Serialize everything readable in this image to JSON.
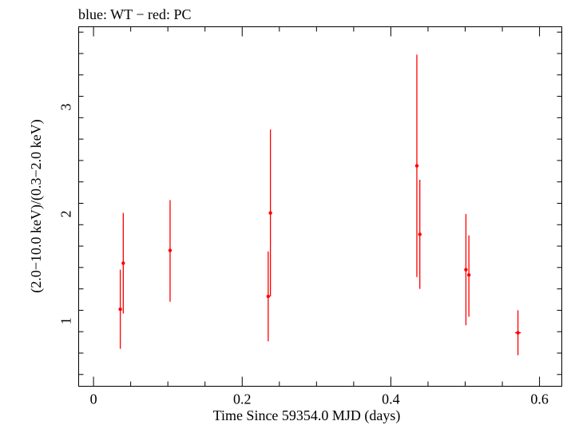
{
  "chart_data": {
    "type": "scatter",
    "title": "blue: WT − red: PC",
    "xlabel": "Time Since 59354.0 MJD (days)",
    "ylabel": "(2.0−10.0 keV)/(0.3−2.0 keV)",
    "xlim": [
      -0.02,
      0.63
    ],
    "ylim": [
      0.39,
      3.75
    ],
    "x_ticks": [
      0,
      0.2,
      0.4,
      0.6
    ],
    "x_tick_labels": [
      "0",
      "0.2",
      "0.4",
      "0.6"
    ],
    "y_ticks": [
      1,
      2,
      3
    ],
    "y_tick_labels": [
      "1",
      "2",
      "3"
    ],
    "grid": false,
    "series": [
      {
        "color": "#ff0000",
        "points": [
          {
            "x": 0.036,
            "y": 1.11,
            "xerr": 0.002,
            "ylo": 0.74,
            "yhi": 1.48
          },
          {
            "x": 0.04,
            "y": 1.54,
            "xerr": 0.002,
            "ylo": 1.07,
            "yhi": 2.01
          },
          {
            "x": 0.103,
            "y": 1.66,
            "xerr": 0.002,
            "ylo": 1.18,
            "yhi": 2.13
          },
          {
            "x": 0.235,
            "y": 1.23,
            "xerr": 0.002,
            "ylo": 0.81,
            "yhi": 1.65
          },
          {
            "x": 0.238,
            "y": 2.01,
            "xerr": 0.002,
            "ylo": 1.23,
            "yhi": 2.79
          },
          {
            "x": 0.435,
            "y": 2.45,
            "xerr": 0.002,
            "ylo": 1.41,
            "yhi": 3.49
          },
          {
            "x": 0.439,
            "y": 1.81,
            "xerr": 0.002,
            "ylo": 1.3,
            "yhi": 2.32
          },
          {
            "x": 0.501,
            "y": 1.48,
            "xerr": 0.002,
            "ylo": 0.96,
            "yhi": 2.0
          },
          {
            "x": 0.505,
            "y": 1.43,
            "xerr": 0.002,
            "ylo": 1.04,
            "yhi": 1.8
          },
          {
            "x": 0.571,
            "y": 0.89,
            "xerr": 0.004,
            "ylo": 0.68,
            "yhi": 1.1
          }
        ]
      }
    ]
  }
}
